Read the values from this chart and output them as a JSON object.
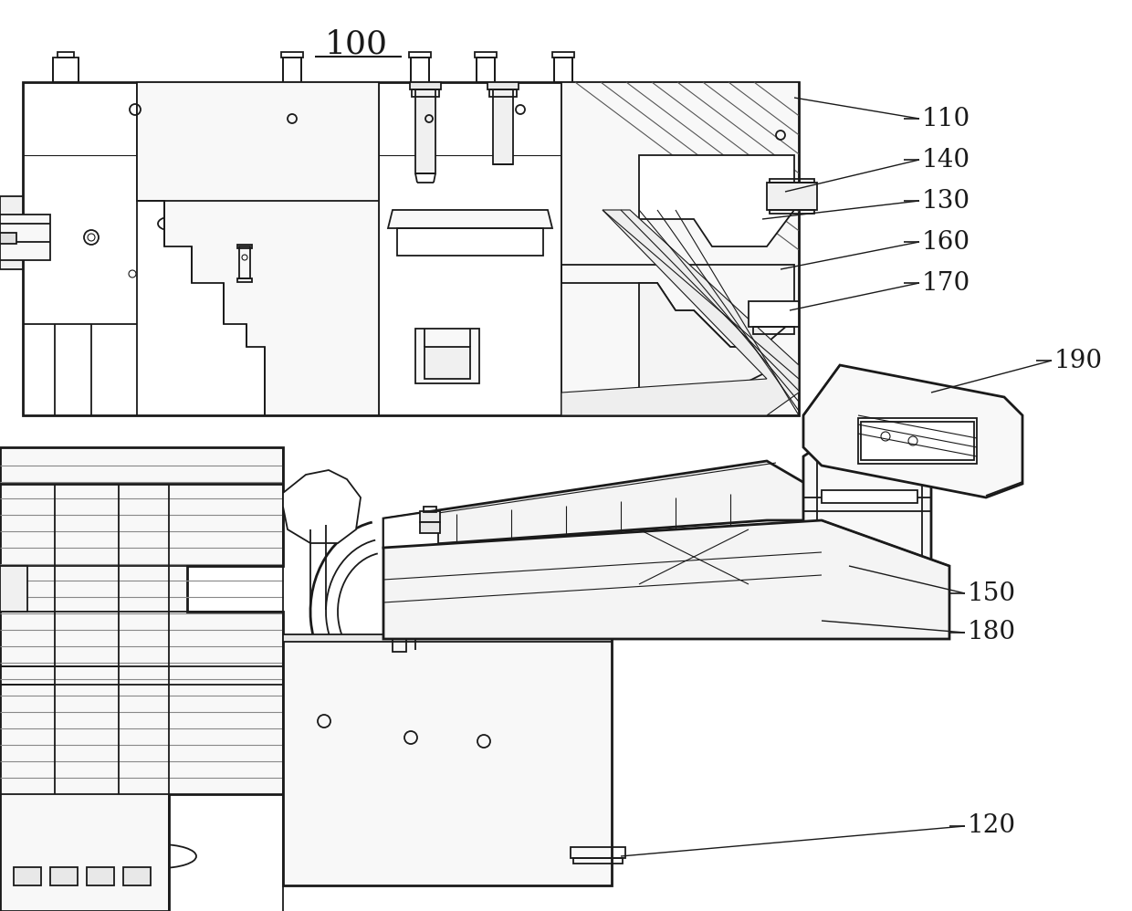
{
  "title": "100",
  "background_color": "#ffffff",
  "line_color": "#1a1a1a",
  "figsize": [
    12.4,
    9.98
  ],
  "dpi": 100,
  "annotations": [
    [
      "110",
      1010,
      130,
      870,
      107
    ],
    [
      "140",
      1010,
      175,
      860,
      210
    ],
    [
      "130",
      1010,
      220,
      835,
      240
    ],
    [
      "160",
      1010,
      265,
      855,
      295
    ],
    [
      "170",
      1010,
      310,
      865,
      340
    ],
    [
      "190",
      1155,
      395,
      1020,
      430
    ],
    [
      "150",
      1060,
      650,
      930,
      620
    ],
    [
      "180",
      1060,
      693,
      900,
      680
    ],
    [
      "120",
      1060,
      905,
      680,
      938
    ]
  ]
}
